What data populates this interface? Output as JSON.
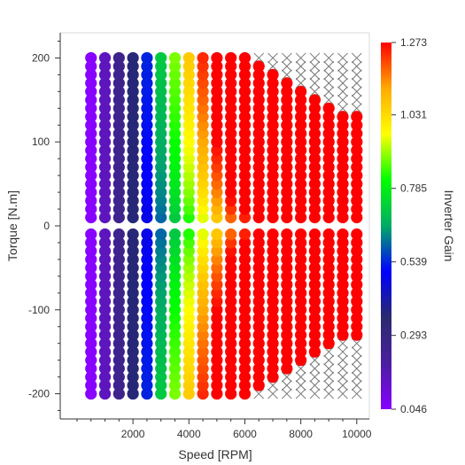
{
  "chart_data": {
    "type": "scatter",
    "title": "",
    "xlabel": "Speed [RPM]",
    "ylabel": "Torque [N.m]",
    "xlim": [
      -600,
      10450
    ],
    "ylim": [
      -230,
      230
    ],
    "grid": false,
    "x_ticks": [
      "2000",
      "4000",
      "6000",
      "8000",
      "10000"
    ],
    "x_tick_values": [
      2000,
      4000,
      6000,
      8000,
      10000
    ],
    "y_ticks": [
      "200",
      "100",
      "0",
      "-100",
      "-200"
    ],
    "y_tick_values": [
      200,
      100,
      0,
      -100,
      -200
    ],
    "speeds": [
      500,
      1000,
      1500,
      2000,
      2500,
      3000,
      3500,
      4000,
      4500,
      5000,
      5500,
      6000,
      6500,
      7000,
      7500,
      8000,
      8500,
      9000,
      9500,
      10000
    ],
    "torque_step": 10,
    "torque_max": 200,
    "torque_limit_per_speed": [
      200,
      200,
      200,
      200,
      200,
      200,
      200,
      200,
      200,
      200,
      200,
      200,
      190,
      180,
      170,
      160,
      150,
      140,
      135,
      130
    ],
    "gain_model": "gain rises with speed and with |torque|; points beyond the torque limit are infeasible and drawn as x markers",
    "infeasible_marker": "x",
    "infeasible_color": "#777777",
    "colorbar": {
      "title": "Inverter Gain",
      "min": 0.046,
      "max": 1.273,
      "tick_labels": [
        "1.273",
        "1.031",
        "0.785",
        "0.539",
        "0.293",
        "0.046"
      ],
      "tick_values": [
        1.273,
        1.031,
        0.785,
        0.539,
        0.293,
        0.046
      ],
      "palette": [
        "#8800ff",
        "#4a1fa0",
        "#2a2a6e",
        "#0000ff",
        "#00aa66",
        "#00ff00",
        "#ffff00",
        "#ffaa00",
        "#ff0000"
      ]
    }
  }
}
